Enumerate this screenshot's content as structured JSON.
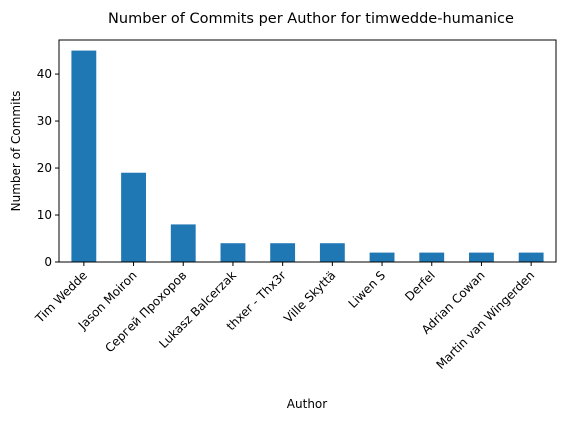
{
  "chart_data": {
    "type": "bar",
    "title": "Number of Commits per Author for timwedde-humanice",
    "xlabel": "Author",
    "ylabel": "Number of Commits",
    "categories": [
      "Tim Wedde",
      "Jason Moiron",
      "Сергей Прохоров",
      "Lukasz Balcerzak",
      "thxer - Thx3r",
      "Ville Skyttä",
      "Liwen S",
      "Derfel",
      "Adrian Cowan",
      "Martin van Wingerden"
    ],
    "values": [
      45,
      19,
      8,
      4,
      4,
      4,
      2,
      2,
      2,
      2
    ],
    "ylim": [
      0,
      47.25
    ],
    "yticks": [
      0,
      10,
      20,
      30,
      40
    ],
    "bar_color": "#1f77b4",
    "grid": false,
    "legend": "none"
  }
}
